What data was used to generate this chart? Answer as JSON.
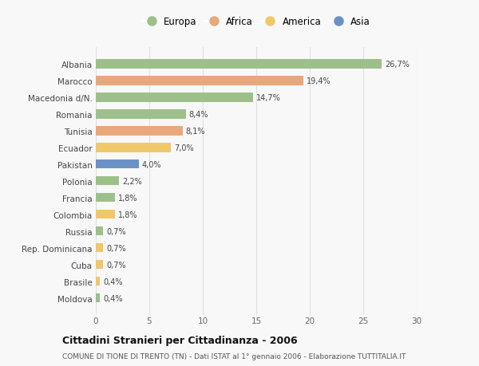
{
  "countries": [
    "Albania",
    "Marocco",
    "Macedonia d/N.",
    "Romania",
    "Tunisia",
    "Ecuador",
    "Pakistan",
    "Polonia",
    "Francia",
    "Colombia",
    "Russia",
    "Rep. Dominicana",
    "Cuba",
    "Brasile",
    "Moldova"
  ],
  "values": [
    26.7,
    19.4,
    14.7,
    8.4,
    8.1,
    7.0,
    4.0,
    2.2,
    1.8,
    1.8,
    0.7,
    0.7,
    0.7,
    0.4,
    0.4
  ],
  "labels": [
    "26,7%",
    "19,4%",
    "14,7%",
    "8,4%",
    "8,1%",
    "7,0%",
    "4,0%",
    "2,2%",
    "1,8%",
    "1,8%",
    "0,7%",
    "0,7%",
    "0,7%",
    "0,4%",
    "0,4%"
  ],
  "continents": [
    "Europa",
    "Africa",
    "Europa",
    "Europa",
    "Africa",
    "America",
    "Asia",
    "Europa",
    "Europa",
    "America",
    "Europa",
    "America",
    "America",
    "America",
    "Europa"
  ],
  "colors": {
    "Europa": "#9dc08b",
    "Africa": "#e8a87c",
    "America": "#f0c76a",
    "Asia": "#6a92c4"
  },
  "legend_order": [
    "Europa",
    "Africa",
    "America",
    "Asia"
  ],
  "title": "Cittadini Stranieri per Cittadinanza - 2006",
  "subtitle": "COMUNE DI TIONE DI TRENTO (TN) - Dati ISTAT al 1° gennaio 2006 - Elaborazione TUTTITALIA.IT",
  "xlim": [
    0,
    30
  ],
  "xticks": [
    0,
    5,
    10,
    15,
    20,
    25,
    30
  ],
  "background_color": "#f8f8f8",
  "grid_color": "#e0e0e0"
}
